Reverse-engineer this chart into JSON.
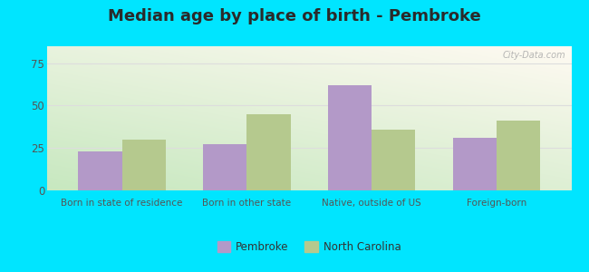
{
  "title": "Median age by place of birth - Pembroke",
  "categories": [
    "Born in state of residence",
    "Born in other state",
    "Native, outside of US",
    "Foreign-born"
  ],
  "pembroke_values": [
    23,
    27,
    62,
    31
  ],
  "nc_values": [
    30,
    45,
    36,
    41
  ],
  "pembroke_color": "#b399c8",
  "nc_color": "#b5c98e",
  "background_outer": "#00e5ff",
  "ylim": [
    0,
    85
  ],
  "yticks": [
    0,
    25,
    50,
    75
  ],
  "bar_width": 0.35,
  "legend_labels": [
    "Pembroke",
    "North Carolina"
  ],
  "title_fontsize": 13,
  "title_color": "#2a2a2a",
  "watermark": "City-Data.com",
  "grid_color": "#dddddd",
  "tick_color": "#555555"
}
